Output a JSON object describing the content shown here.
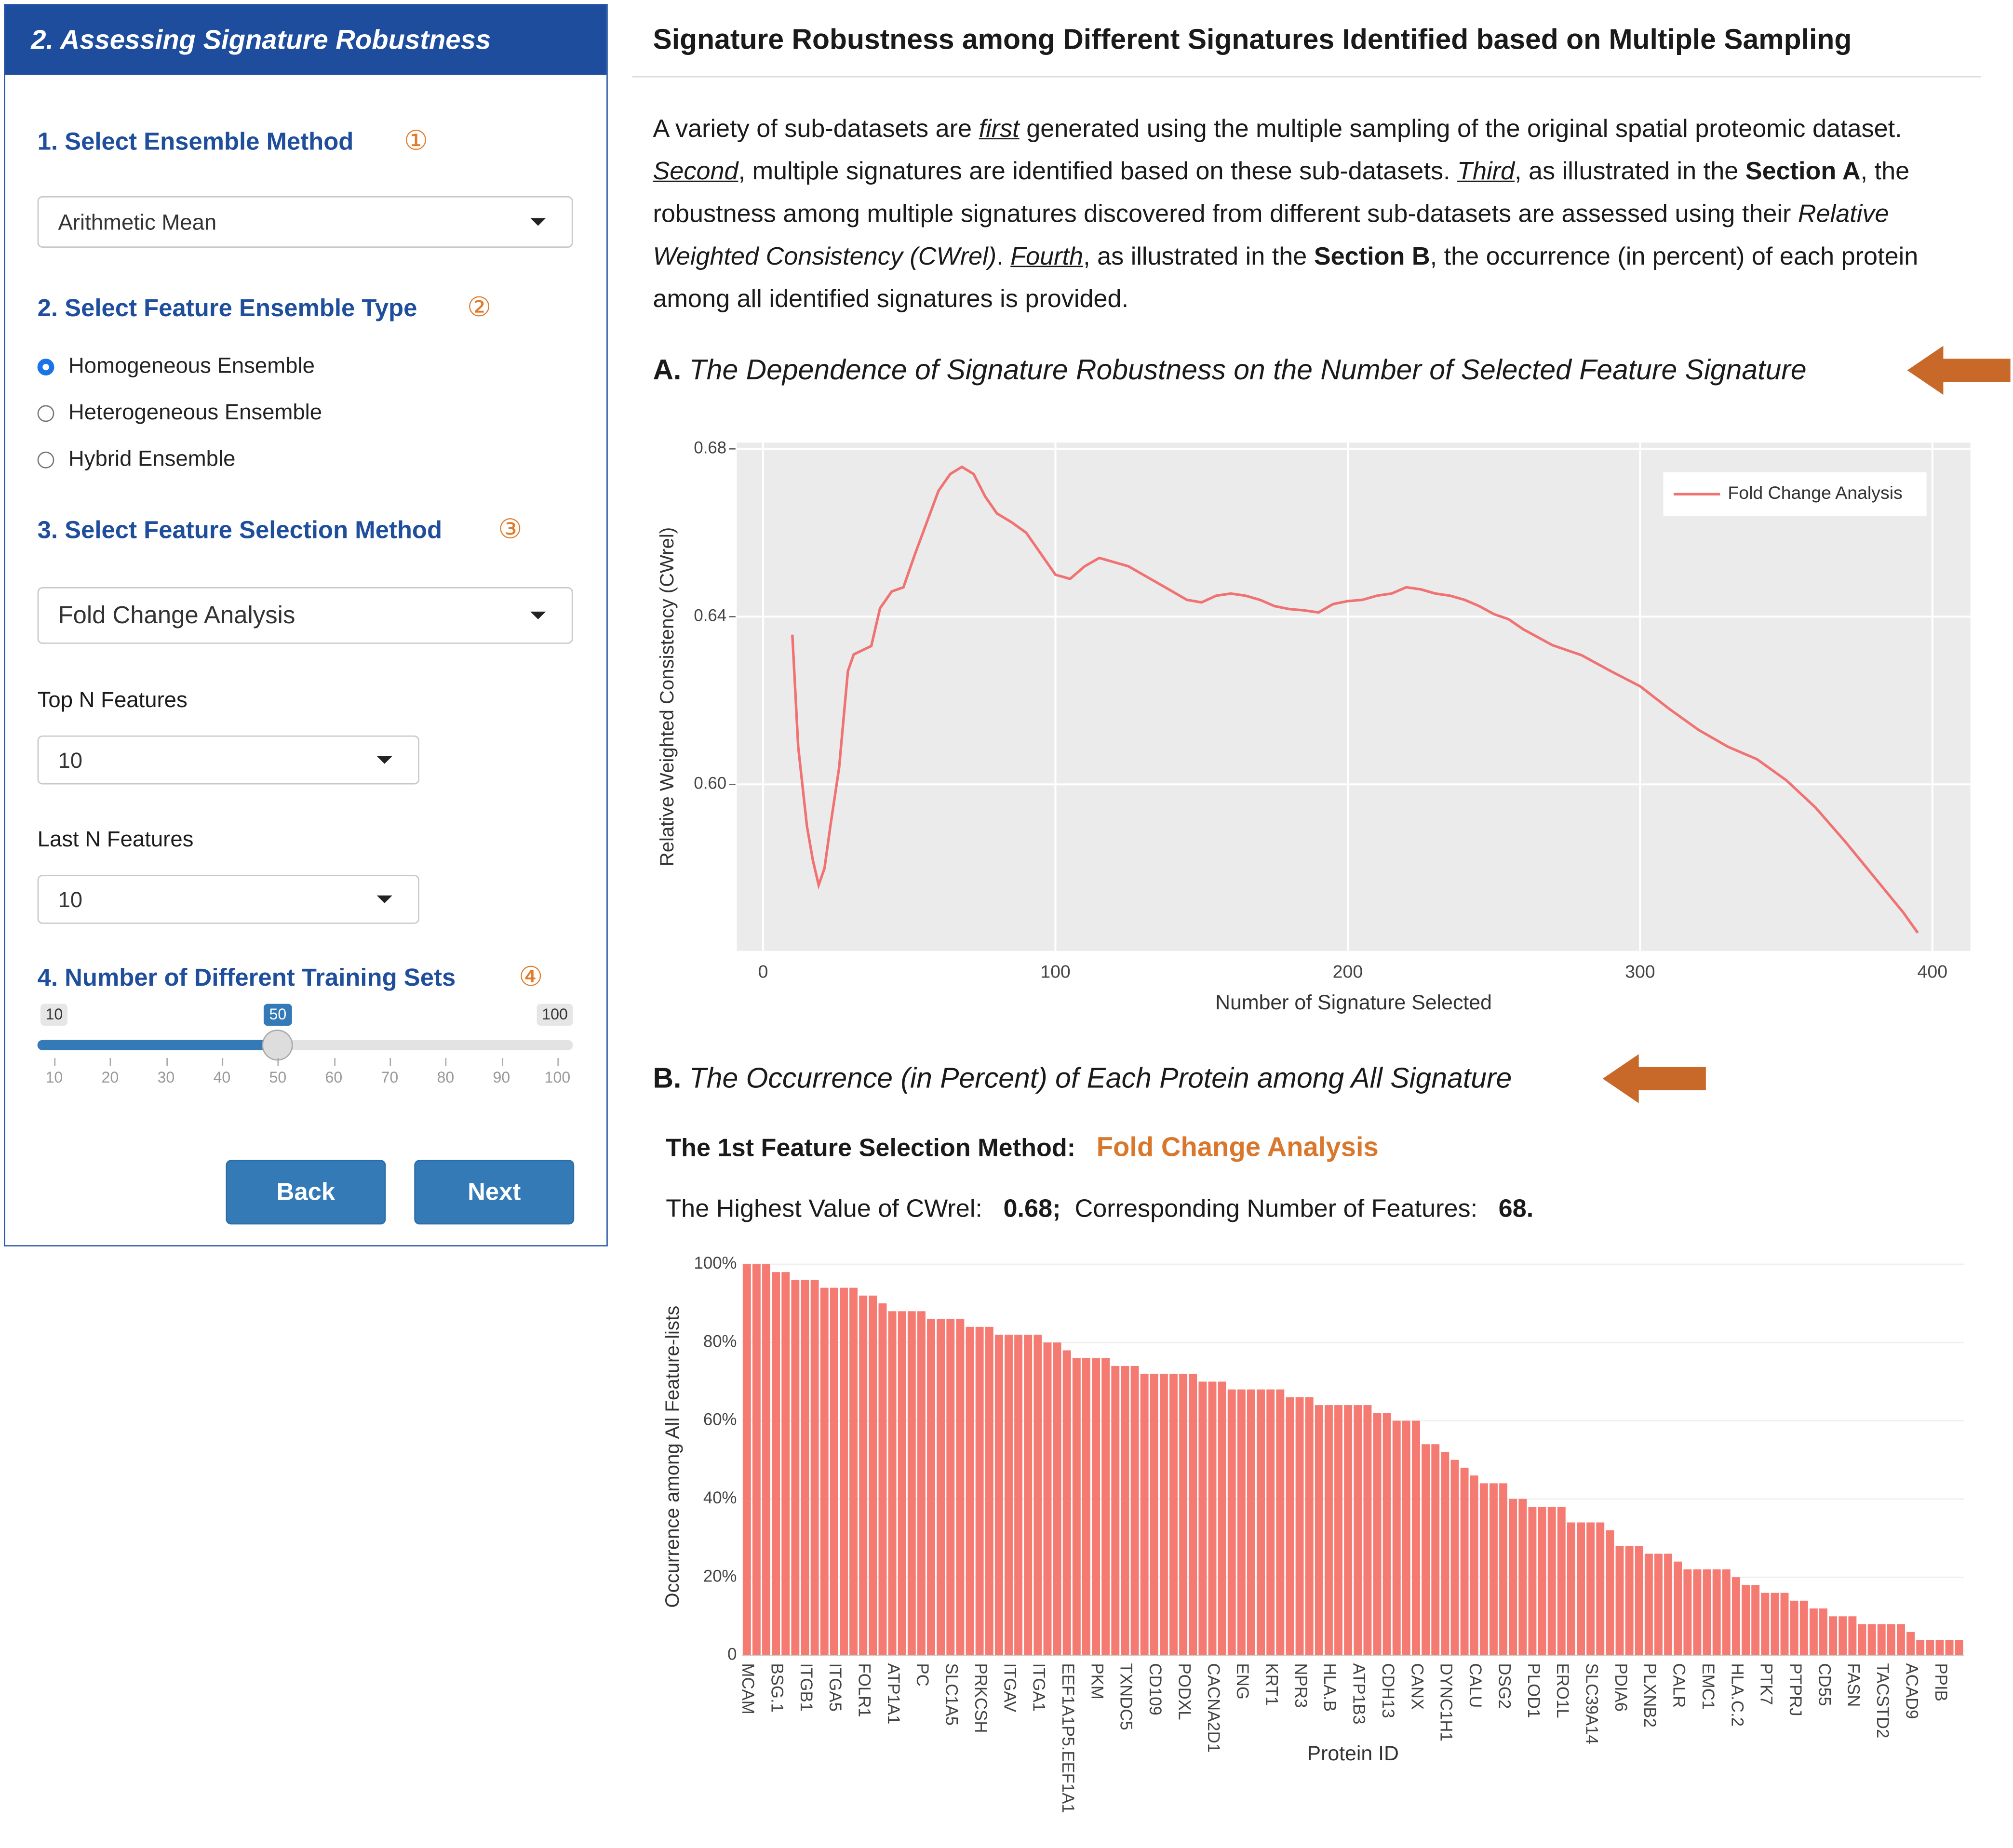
{
  "sidebar": {
    "title": "2. Assessing Signature Robustness",
    "steps": [
      {
        "label": "1. Select Ensemble Method",
        "marker": "①"
      },
      {
        "label": "2. Select Feature Ensemble Type",
        "marker": "②"
      },
      {
        "label": "3. Select Feature Selection Method",
        "marker": "③"
      },
      {
        "label": "4. Number of Different Training Sets",
        "marker": "④"
      }
    ],
    "ensemble_method": "Arithmetic Mean",
    "ensemble_types": [
      "Homogeneous Ensemble",
      "Heterogeneous Ensemble",
      "Hybrid Ensemble"
    ],
    "selected_type": 0,
    "feature_method": "Fold Change Analysis",
    "top_n_label": "Top N Features",
    "top_n": 10,
    "last_n_label": "Last N Features",
    "last_n": 10,
    "slider": {
      "min": 10,
      "max": 100,
      "value": 50,
      "ticks": [
        10,
        20,
        30,
        40,
        50,
        60,
        70,
        80,
        90,
        100
      ]
    },
    "buttons": [
      "Back",
      "Next"
    ]
  },
  "main": {
    "title": "Signature Robustness among Different Signatures Identified based on Multiple Sampling",
    "paragraph": [
      "A variety of sub-datasets are ",
      "first",
      " generated using the multiple sampling of the original spatial proteomic dataset. ",
      "Second",
      ", multiple signatures are identified based on these sub-datasets. ",
      "Third",
      ", as illustrated in the ",
      "Section A",
      ", the robustness among multiple signatures discovered from different sub-datasets are assessed using their ",
      "Relative Weighted Consistency (CWrel)",
      ". ",
      "Fourth",
      ", as illustrated in the ",
      "Section B",
      ", the occurrence (in percent) of each protein among all identified signatures is provided."
    ],
    "section_a": {
      "letter": "A.",
      "title": "The Dependence of Signature Robustness on the Number of Selected Feature Signature"
    },
    "section_b": {
      "letter": "B.",
      "title": "The Occurrence (in Percent) of Each Protein among All Signature"
    },
    "method_label": "The 1st Feature Selection Method:",
    "method": "Fold Change Analysis",
    "cwrel_label": "The Highest Value of CWrel:",
    "cwrel_value": "0.68;",
    "features_label": "Corresponding Number of Features:",
    "features_value": "68."
  },
  "chart_data": [
    {
      "type": "line",
      "xlabel": "Number of Signature Selected",
      "ylabel": "Relative Weighted Consistency (CWrel)",
      "x": [
        10,
        12,
        15,
        17,
        19,
        21,
        23,
        26,
        29,
        31,
        34,
        37,
        40,
        44,
        48,
        52,
        56,
        60,
        64,
        68,
        72,
        76,
        80,
        85,
        90,
        95,
        100,
        105,
        110,
        115,
        120,
        125,
        130,
        135,
        140,
        145,
        150,
        155,
        160,
        165,
        170,
        175,
        180,
        185,
        190,
        195,
        200,
        205,
        210,
        215,
        220,
        225,
        230,
        235,
        240,
        245,
        250,
        255,
        260,
        270,
        280,
        290,
        300,
        310,
        320,
        330,
        340,
        350,
        360,
        370,
        380,
        390,
        395
      ],
      "series": [
        {
          "name": "Fold Change Analysis",
          "color": "#f07272",
          "values": [
            0.6357,
            0.609,
            0.59,
            0.582,
            0.576,
            0.58,
            0.59,
            0.604,
            0.627,
            0.631,
            0.632,
            0.633,
            0.642,
            0.646,
            0.647,
            0.655,
            0.6625,
            0.67,
            0.674,
            0.6757,
            0.674,
            0.6686,
            0.6646,
            0.6625,
            0.66,
            0.655,
            0.65,
            0.649,
            0.652,
            0.654,
            0.653,
            0.652,
            0.65,
            0.648,
            0.646,
            0.644,
            0.6434,
            0.645,
            0.6455,
            0.645,
            0.644,
            0.6425,
            0.6418,
            0.6415,
            0.641,
            0.643,
            0.6437,
            0.644,
            0.645,
            0.6455,
            0.647,
            0.6465,
            0.6455,
            0.645,
            0.644,
            0.6425,
            0.6406,
            0.6394,
            0.637,
            0.6332,
            0.6308,
            0.627,
            0.6234,
            0.618,
            0.613,
            0.609,
            0.606,
            0.601,
            0.5945,
            0.5865,
            0.578,
            0.5695,
            0.5646
          ]
        }
      ],
      "xlim": [
        -9,
        413
      ],
      "xticks": [
        0,
        100,
        200,
        300,
        400
      ],
      "ylim": [
        0.5603,
        0.6815
      ],
      "yticks": [
        {
          "value": 0.6,
          "label": "0.60"
        },
        0.64,
        0.68
      ],
      "grid": true,
      "legend": "top right"
    },
    {
      "type": "bar",
      "xlabel": "Protein ID",
      "ylabel": "Occurrence among All Feature-lists",
      "categories": [
        "MCAM",
        null,
        null,
        "BSG.1",
        null,
        null,
        "ITGB1",
        null,
        null,
        "ITGA5",
        null,
        null,
        "FOLR1",
        null,
        null,
        "ATP1A1",
        null,
        null,
        "PC",
        null,
        null,
        "SLC1A5",
        null,
        null,
        "PRKCSH",
        null,
        null,
        "ITGAV",
        null,
        null,
        "ITGA1",
        null,
        null,
        "EEF1A1P5.EEF1A1",
        null,
        null,
        "PKM",
        null,
        null,
        "TXNDC5",
        null,
        null,
        "CD109",
        null,
        null,
        "PODXL",
        null,
        null,
        "CACNA2D1",
        null,
        null,
        "ENG",
        null,
        null,
        "KRT1",
        null,
        null,
        "NPR3",
        null,
        null,
        "HLA.B",
        null,
        null,
        "ATP1B3",
        null,
        null,
        "CDH13",
        null,
        null,
        "CANX",
        null,
        null,
        "DYNC1H1",
        null,
        null,
        "CALU",
        null,
        null,
        "DSG2",
        null,
        null,
        "PLOD1",
        null,
        null,
        "ERO1L",
        null,
        null,
        "SLC39A14",
        null,
        null,
        "PDIA6",
        null,
        null,
        "PLXNB2",
        null,
        null,
        "CALR",
        null,
        null,
        "EMC1",
        null,
        null,
        "HLA.C.2",
        null,
        null,
        "PTK7",
        null,
        null,
        "PTPRJ",
        null,
        null,
        "CD55",
        null,
        null,
        "FASN",
        null,
        null,
        "TACSTD2",
        null,
        null,
        "ACAD9",
        null,
        null,
        "PPIB",
        null,
        null
      ],
      "values": [
        100,
        100,
        100,
        98,
        98,
        96,
        96,
        96,
        94,
        94,
        94,
        94,
        92,
        92,
        90,
        88,
        88,
        88,
        88,
        86,
        86,
        86,
        86,
        84,
        84,
        84,
        82,
        82,
        82,
        82,
        82,
        80,
        80,
        78,
        76,
        76,
        76,
        76,
        74,
        74,
        74,
        72,
        72,
        72,
        72,
        72,
        72,
        70,
        70,
        70,
        68,
        68,
        68,
        68,
        68,
        68,
        66,
        66,
        66,
        64,
        64,
        64,
        64,
        64,
        64,
        62,
        62,
        60,
        60,
        60,
        54,
        54,
        52,
        50,
        48,
        46,
        44,
        44,
        44,
        40,
        40,
        38,
        38,
        38,
        38,
        34,
        34,
        34,
        34,
        32,
        28,
        28,
        28,
        26,
        26,
        26,
        24,
        22,
        22,
        22,
        22,
        22,
        20,
        18,
        18,
        16,
        16,
        16,
        14,
        14,
        12,
        12,
        10,
        10,
        10,
        8,
        8,
        8,
        8,
        8,
        6,
        4,
        4,
        4,
        4,
        4
      ],
      "color": "#f47a72",
      "ylim": [
        0,
        101.6
      ],
      "yticks": [
        0,
        {
          "value": 20,
          "label": "20%"
        },
        {
          "value": 40,
          "label": "40%"
        },
        {
          "value": 60,
          "label": "60%"
        },
        {
          "value": 80,
          "label": "80%"
        },
        {
          "value": 100,
          "label": "100%"
        }
      ],
      "grid": true
    }
  ]
}
